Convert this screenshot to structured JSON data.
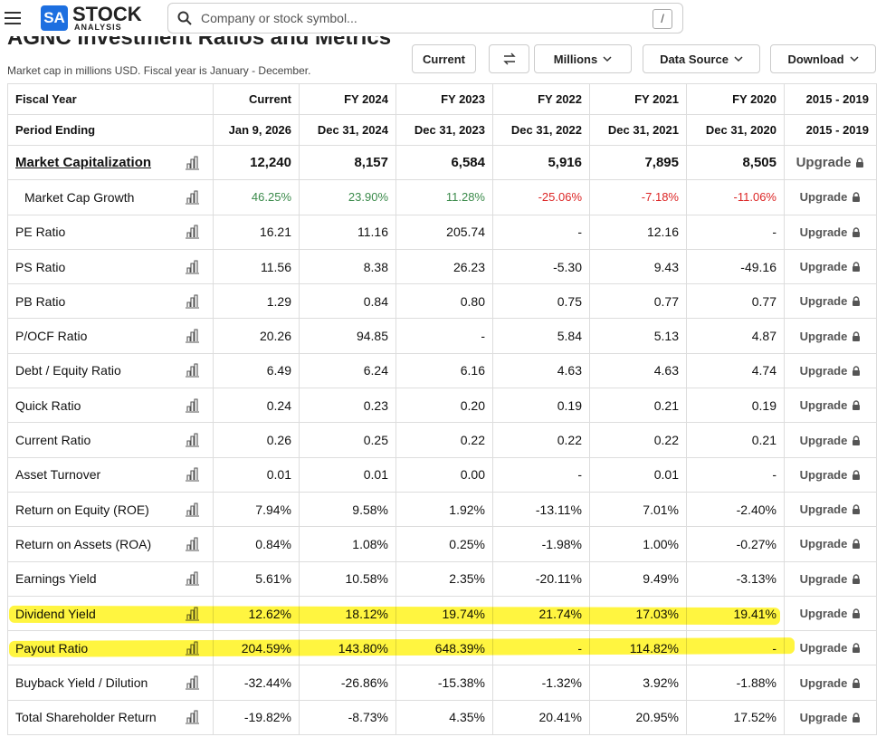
{
  "header": {
    "logo_mark": "SA",
    "logo_word": "STOCK",
    "logo_sub": "ANALYSIS",
    "search_placeholder": "Company or stock symbol...",
    "search_shortcut": "/"
  },
  "title": "AGNC Investment Ratios and Metrics",
  "subtitle": "Market cap in millions USD. Fiscal year is January - December.",
  "controls": {
    "current": "Current",
    "millions": "Millions",
    "data_source": "Data Source",
    "download": "Download"
  },
  "table": {
    "columns": [
      "Fiscal Year",
      "Current",
      "FY 2024",
      "FY 2023",
      "FY 2022",
      "FY 2021",
      "FY 2020",
      "2015 - 2019"
    ],
    "periods": [
      "Period Ending",
      "Jan 9, 2026",
      "Dec 31, 2024",
      "Dec 31, 2023",
      "Dec 31, 2022",
      "Dec 31, 2021",
      "Dec 31, 2020",
      "2015 - 2019"
    ],
    "upgrade": "Upgrade",
    "rows": [
      {
        "label": "Market Capitalization",
        "values": [
          "12,240",
          "8,157",
          "6,584",
          "5,916",
          "7,895",
          "8,505"
        ]
      },
      {
        "label": "Market Cap Growth",
        "values": [
          "46.25%",
          "23.90%",
          "11.28%",
          "-25.06%",
          "-7.18%",
          "-11.06%"
        ]
      },
      {
        "label": "PE Ratio",
        "values": [
          "16.21",
          "11.16",
          "205.74",
          "-",
          "12.16",
          "-"
        ]
      },
      {
        "label": "PS Ratio",
        "values": [
          "11.56",
          "8.38",
          "26.23",
          "-5.30",
          "9.43",
          "-49.16"
        ]
      },
      {
        "label": "PB Ratio",
        "values": [
          "1.29",
          "0.84",
          "0.80",
          "0.75",
          "0.77",
          "0.77"
        ]
      },
      {
        "label": "P/OCF Ratio",
        "values": [
          "20.26",
          "94.85",
          "-",
          "5.84",
          "5.13",
          "4.87"
        ]
      },
      {
        "label": "Debt / Equity Ratio",
        "values": [
          "6.49",
          "6.24",
          "6.16",
          "4.63",
          "4.63",
          "4.74"
        ]
      },
      {
        "label": "Quick Ratio",
        "values": [
          "0.24",
          "0.23",
          "0.20",
          "0.19",
          "0.21",
          "0.19"
        ]
      },
      {
        "label": "Current Ratio",
        "values": [
          "0.26",
          "0.25",
          "0.22",
          "0.22",
          "0.22",
          "0.21"
        ]
      },
      {
        "label": "Asset Turnover",
        "values": [
          "0.01",
          "0.01",
          "0.00",
          "-",
          "0.01",
          "-"
        ]
      },
      {
        "label": "Return on Equity (ROE)",
        "values": [
          "7.94%",
          "9.58%",
          "1.92%",
          "-13.11%",
          "7.01%",
          "-2.40%"
        ]
      },
      {
        "label": "Return on Assets (ROA)",
        "values": [
          "0.84%",
          "1.08%",
          "0.25%",
          "-1.98%",
          "1.00%",
          "-0.27%"
        ]
      },
      {
        "label": "Earnings Yield",
        "values": [
          "5.61%",
          "10.58%",
          "2.35%",
          "-20.11%",
          "9.49%",
          "-3.13%"
        ]
      },
      {
        "label": "Dividend Yield",
        "values": [
          "12.62%",
          "18.12%",
          "19.74%",
          "21.74%",
          "17.03%",
          "19.41%"
        ]
      },
      {
        "label": "Payout Ratio",
        "values": [
          "204.59%",
          "143.80%",
          "648.39%",
          "-",
          "114.82%",
          "-"
        ]
      },
      {
        "label": "Buyback Yield / Dilution",
        "values": [
          "-32.44%",
          "-26.86%",
          "-15.38%",
          "-1.32%",
          "3.92%",
          "-1.88%"
        ]
      },
      {
        "label": "Total Shareholder Return",
        "values": [
          "-19.82%",
          "-8.73%",
          "4.35%",
          "20.41%",
          "20.95%",
          "17.52%"
        ]
      }
    ]
  }
}
